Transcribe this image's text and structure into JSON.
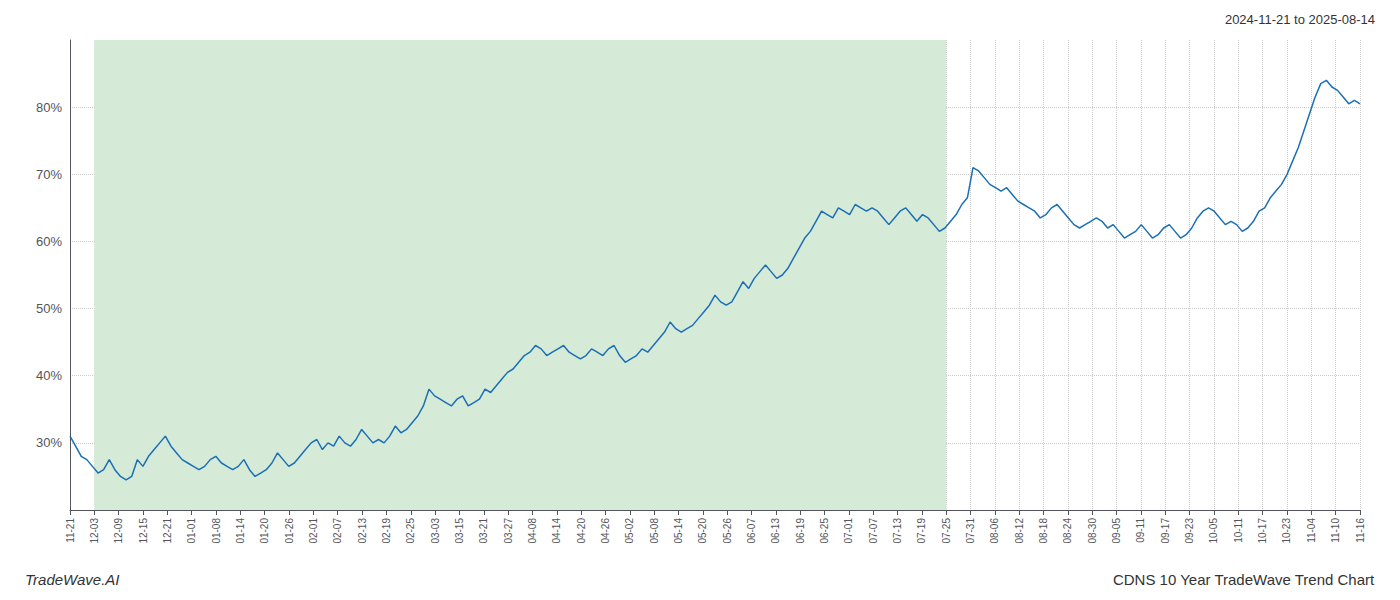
{
  "chart_data": {
    "type": "line",
    "title": "CDNS 10 Year TradeWave Trend Chart",
    "subtitle": "2024-11-21 to 2025-08-14",
    "annotations": [
      "TradeWave.AI"
    ],
    "color": "#1a6fb5",
    "grid": true,
    "xlim": [
      0,
      53
    ],
    "xticks": [
      {
        "value": 0,
        "label": "11-21"
      },
      {
        "value": 1,
        "label": "12-03"
      },
      {
        "value": 2,
        "label": "12-09"
      },
      {
        "value": 3,
        "label": "12-15"
      },
      {
        "value": 4,
        "label": "12-21"
      },
      {
        "value": 5,
        "label": "01-01"
      },
      {
        "value": 6,
        "label": "01-08"
      },
      {
        "value": 7,
        "label": "01-14"
      },
      {
        "value": 8,
        "label": "01-20"
      },
      {
        "value": 9,
        "label": "01-26"
      },
      {
        "value": 10,
        "label": "02-01"
      },
      {
        "value": 11,
        "label": "02-07"
      },
      {
        "value": 12,
        "label": "02-13"
      },
      {
        "value": 13,
        "label": "02-19"
      },
      {
        "value": 14,
        "label": "02-25"
      },
      {
        "value": 15,
        "label": "03-03"
      },
      {
        "value": 16,
        "label": "03-15"
      },
      {
        "value": 17,
        "label": "03-21"
      },
      {
        "value": 18,
        "label": "03-27"
      },
      {
        "value": 19,
        "label": "04-08"
      },
      {
        "value": 20,
        "label": "04-14"
      },
      {
        "value": 21,
        "label": "04-20"
      },
      {
        "value": 22,
        "label": "04-26"
      },
      {
        "value": 23,
        "label": "05-02"
      },
      {
        "value": 24,
        "label": "05-08"
      },
      {
        "value": 25,
        "label": "05-14"
      },
      {
        "value": 26,
        "label": "05-20"
      },
      {
        "value": 27,
        "label": "05-26"
      },
      {
        "value": 28,
        "label": "06-07"
      },
      {
        "value": 29,
        "label": "06-13"
      },
      {
        "value": 30,
        "label": "06-19"
      },
      {
        "value": 31,
        "label": "06-25"
      },
      {
        "value": 32,
        "label": "07-01"
      },
      {
        "value": 33,
        "label": "07-07"
      },
      {
        "value": 34,
        "label": "07-13"
      },
      {
        "value": 35,
        "label": "07-19"
      },
      {
        "value": 36,
        "label": "07-25"
      },
      {
        "value": 37,
        "label": "07-31"
      },
      {
        "value": 38,
        "label": "08-06"
      },
      {
        "value": 39,
        "label": "08-12"
      },
      {
        "value": 40,
        "label": "08-18"
      },
      {
        "value": 41,
        "label": "08-24"
      },
      {
        "value": 42,
        "label": "08-30"
      },
      {
        "value": 43,
        "label": "09-05"
      },
      {
        "value": 44,
        "label": "09-11"
      },
      {
        "value": 45,
        "label": "09-17"
      },
      {
        "value": 46,
        "label": "09-23"
      },
      {
        "value": 47,
        "label": "10-05"
      },
      {
        "value": 48,
        "label": "10-11"
      },
      {
        "value": 49,
        "label": "10-17"
      },
      {
        "value": 50,
        "label": "10-23"
      },
      {
        "value": 51,
        "label": "11-04"
      },
      {
        "value": 52,
        "label": "11-10"
      },
      {
        "value": 53,
        "label": "11-16"
      }
    ],
    "ylim": [
      20,
      90
    ],
    "yticks": [
      {
        "value": 30,
        "label": "30%"
      },
      {
        "value": 40,
        "label": "40%"
      },
      {
        "value": 50,
        "label": "50%"
      },
      {
        "value": 60,
        "label": "60%"
      },
      {
        "value": 70,
        "label": "70%"
      },
      {
        "value": 80,
        "label": "80%"
      }
    ],
    "shaded_region": {
      "x": [
        1,
        36
      ],
      "color": "#d6ead8"
    },
    "values": [
      31.0,
      29.5,
      28.0,
      27.5,
      26.5,
      25.5,
      26.0,
      27.5,
      26.0,
      25.0,
      24.5,
      25.0,
      27.5,
      26.5,
      28.0,
      29.0,
      30.0,
      31.0,
      29.5,
      28.5,
      27.5,
      27.0,
      26.5,
      26.0,
      26.5,
      27.5,
      28.0,
      27.0,
      26.5,
      26.0,
      26.5,
      27.5,
      26.0,
      25.0,
      25.5,
      26.0,
      27.0,
      28.5,
      27.5,
      26.5,
      27.0,
      28.0,
      29.0,
      30.0,
      30.5,
      29.0,
      30.0,
      29.5,
      31.0,
      30.0,
      29.5,
      30.5,
      32.0,
      31.0,
      30.0,
      30.5,
      30.0,
      31.0,
      32.5,
      31.5,
      32.0,
      33.0,
      34.0,
      35.5,
      38.0,
      37.0,
      36.5,
      36.0,
      35.5,
      36.5,
      37.0,
      35.5,
      36.0,
      36.5,
      38.0,
      37.5,
      38.5,
      39.5,
      40.5,
      41.0,
      42.0,
      43.0,
      43.5,
      44.5,
      44.0,
      43.0,
      43.5,
      44.0,
      44.5,
      43.5,
      43.0,
      42.5,
      43.0,
      44.0,
      43.5,
      43.0,
      44.0,
      44.5,
      43.0,
      42.0,
      42.5,
      43.0,
      44.0,
      43.5,
      44.5,
      45.5,
      46.5,
      48.0,
      47.0,
      46.5,
      47.0,
      47.5,
      48.5,
      49.5,
      50.5,
      52.0,
      51.0,
      50.5,
      51.0,
      52.5,
      54.0,
      53.0,
      54.5,
      55.5,
      56.5,
      55.5,
      54.5,
      55.0,
      56.0,
      57.5,
      59.0,
      60.5,
      61.5,
      63.0,
      64.5,
      64.0,
      63.5,
      65.0,
      64.5,
      64.0,
      65.5,
      65.0,
      64.5,
      65.0,
      64.5,
      63.5,
      62.5,
      63.5,
      64.5,
      65.0,
      64.0,
      63.0,
      64.0,
      63.5,
      62.5,
      61.5,
      62.0,
      63.0,
      64.0,
      65.5,
      66.5,
      71.0,
      70.5,
      69.5,
      68.5,
      68.0,
      67.5,
      68.0,
      67.0,
      66.0,
      65.5,
      65.0,
      64.5,
      63.5,
      64.0,
      65.0,
      65.5,
      64.5,
      63.5,
      62.5,
      62.0,
      62.5,
      63.0,
      63.5,
      63.0,
      62.0,
      62.5,
      61.5,
      60.5,
      61.0,
      61.5,
      62.5,
      61.5,
      60.5,
      61.0,
      62.0,
      62.5,
      61.5,
      60.5,
      61.0,
      62.0,
      63.5,
      64.5,
      65.0,
      64.5,
      63.5,
      62.5,
      63.0,
      62.5,
      61.5,
      62.0,
      63.0,
      64.5,
      65.0,
      66.5,
      67.5,
      68.5,
      70.0,
      72.0,
      74.0,
      76.5,
      79.0,
      81.5,
      83.5,
      84.0,
      83.0,
      82.5,
      81.5,
      80.5,
      81.0,
      80.5
    ]
  }
}
